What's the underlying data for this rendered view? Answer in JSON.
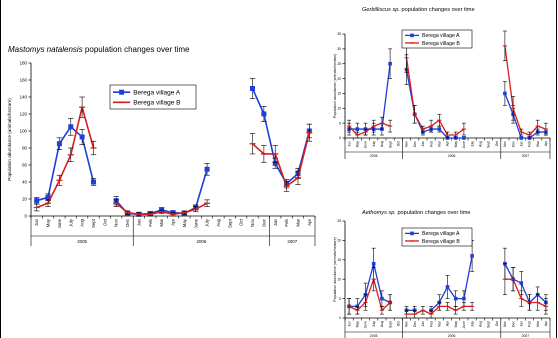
{
  "colors": {
    "series_a": "#1f3fd6",
    "series_b": "#d81e1e",
    "axis": "#000000"
  },
  "chart_data": [
    {
      "type": "line",
      "title_italic": "Mastomys natalensis",
      "title_rest": " population changes over time",
      "ylabel": "Population abundance (animals/hectare)",
      "ylim": [
        0,
        180
      ],
      "yticks": [
        0,
        20,
        40,
        60,
        80,
        100,
        120,
        140,
        160,
        180
      ],
      "x_labels": [
        "Jun",
        "May",
        "June",
        "July",
        "Aug",
        "Sept",
        "Oct",
        "Nov",
        "Dec",
        "Jan",
        "Feb",
        "Mar",
        "Apr",
        "May",
        "June",
        "July",
        "Aug",
        "Sept",
        "Oct",
        "Nov",
        "Dec",
        "Jan",
        "Feb",
        "Mar",
        "Apr"
      ],
      "year_groups": [
        {
          "label": "2005",
          "start": 0,
          "end": 8
        },
        {
          "label": "2006",
          "start": 9,
          "end": 20
        },
        {
          "label": "2007",
          "start": 21,
          "end": 24
        }
      ],
      "legend": [
        "Berega village A",
        "Berega village B"
      ],
      "series": [
        {
          "name": "Berega village A",
          "values": [
            18,
            22,
            85,
            105,
            93,
            40,
            null,
            18,
            3,
            2,
            3,
            7,
            4,
            3,
            10,
            55,
            null,
            null,
            null,
            150,
            120,
            62,
            38,
            50,
            100
          ],
          "err": [
            4,
            4,
            7,
            10,
            9,
            4,
            null,
            5,
            2,
            2,
            2,
            3,
            2,
            2,
            3,
            7,
            null,
            null,
            null,
            12,
            9,
            6,
            5,
            6,
            8
          ]
        },
        {
          "name": "Berega village B",
          "values": [
            10,
            15,
            42,
            72,
            128,
            80,
            null,
            15,
            4,
            2,
            2,
            5,
            2,
            4,
            8,
            15,
            null,
            null,
            null,
            85,
            73,
            73,
            35,
            45,
            98
          ],
          "err": [
            4,
            4,
            6,
            8,
            12,
            8,
            null,
            4,
            2,
            2,
            2,
            2,
            2,
            2,
            3,
            4,
            null,
            null,
            null,
            12,
            10,
            10,
            6,
            8,
            10
          ]
        }
      ]
    },
    {
      "type": "line",
      "title_italic": "Gerbilliscus sp.",
      "title_rest": " population changes over time",
      "ylabel": "Population abundance (animals/hectare)",
      "ylim": [
        0,
        35
      ],
      "yticks": [
        0,
        5,
        10,
        15,
        20,
        25,
        30,
        35
      ],
      "x_labels": [
        "Jun",
        "May",
        "June",
        "July",
        "Aug",
        "Sept",
        "Oct",
        "Nov",
        "Dec",
        "Jan",
        "Feb",
        "Mar",
        "Apr",
        "May",
        "June",
        "July",
        "Aug",
        "Sept",
        "Oct",
        "Nov",
        "Dec",
        "Jan",
        "Feb",
        "Mar",
        "Apr"
      ],
      "year_groups": [
        {
          "label": "2005",
          "start": 0,
          "end": 6
        },
        {
          "label": "2006",
          "start": 7,
          "end": 18
        },
        {
          "label": "2007",
          "start": 19,
          "end": 24
        }
      ],
      "legend": [
        "Berega village A",
        "Berega village B"
      ],
      "series": [
        {
          "name": "Berega village A",
          "values": [
            3,
            3,
            3,
            3,
            3,
            25,
            null,
            23,
            8,
            2,
            3,
            3,
            0,
            0,
            0,
            null,
            null,
            null,
            null,
            15,
            8,
            0,
            0,
            2,
            2
          ],
          "err": [
            2,
            2,
            2,
            2,
            2,
            5,
            null,
            5,
            3,
            1,
            1,
            1,
            0.5,
            0.5,
            0.5,
            null,
            null,
            null,
            null,
            4,
            3,
            0.5,
            0.5,
            1,
            1
          ]
        },
        {
          "name": "Berega village B",
          "values": [
            4,
            1,
            2,
            4,
            5,
            4,
            null,
            27,
            8,
            3,
            4,
            6,
            1,
            1,
            3,
            null,
            null,
            null,
            null,
            31,
            10,
            2,
            1,
            4,
            3
          ],
          "err": [
            2,
            1,
            1,
            2,
            2,
            2,
            null,
            5,
            3,
            1,
            2,
            2,
            1,
            1,
            2,
            null,
            null,
            null,
            null,
            5,
            4,
            1,
            1,
            2,
            2
          ]
        }
      ]
    },
    {
      "type": "line",
      "title_italic": "Aethomys sp.",
      "title_rest": " population changes over time",
      "ylabel": "Population abundance (animals/hectare)",
      "ylim": [
        0,
        25
      ],
      "yticks": [
        0,
        5,
        10,
        15,
        20,
        25
      ],
      "x_labels": [
        "Jun",
        "May",
        "June",
        "July",
        "Aug",
        "Sept",
        "Oct",
        "Nov",
        "Dec",
        "Jan",
        "Feb",
        "Mar",
        "Apr",
        "May",
        "June",
        "July",
        "Aug",
        "Sept",
        "Oct",
        "Nov",
        "Dec",
        "Jan",
        "Feb",
        "Mar",
        "Apr"
      ],
      "year_groups": [
        {
          "label": "2005",
          "start": 0,
          "end": 6
        },
        {
          "label": "2006",
          "start": 7,
          "end": 18
        },
        {
          "label": "2007",
          "start": 19,
          "end": 24
        }
      ],
      "legend": [
        "Berega village A",
        "Berega village B"
      ],
      "series": [
        {
          "name": "Berega village A",
          "values": [
            3,
            3,
            6,
            14,
            5,
            4,
            null,
            2,
            2,
            null,
            2,
            4,
            8,
            5,
            5,
            16,
            null,
            null,
            null,
            14,
            10,
            9,
            4,
            6,
            4
          ],
          "err": [
            2,
            2,
            3,
            4,
            2,
            2,
            null,
            1,
            1,
            null,
            1,
            2,
            3,
            2,
            2,
            4,
            null,
            null,
            null,
            4,
            3,
            3,
            2,
            2,
            2
          ]
        },
        {
          "name": "Berega village B",
          "values": [
            3,
            2,
            4,
            10,
            2,
            4,
            null,
            1,
            1,
            2,
            1,
            3,
            3,
            2,
            3,
            3,
            null,
            null,
            null,
            10,
            10,
            5,
            4,
            4,
            3
          ],
          "err": [
            2,
            1,
            2,
            3,
            1,
            2,
            null,
            1,
            1,
            1,
            1,
            1,
            1,
            1,
            1,
            1,
            null,
            null,
            null,
            4,
            3,
            2,
            2,
            2,
            2
          ]
        }
      ]
    }
  ]
}
